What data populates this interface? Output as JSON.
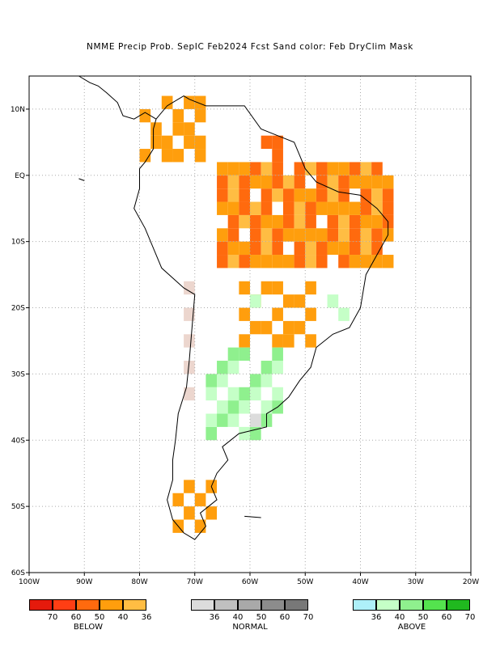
{
  "title": "NMME Precip Prob. SepIC  Feb2024 Fcst  Sand color: Feb DryClim Mask",
  "map": {
    "lon_range": [
      -100,
      -20
    ],
    "lat_range": [
      -60,
      15
    ],
    "lon_ticks": [
      "100W",
      "90W",
      "80W",
      "70W",
      "60W",
      "50W",
      "40W",
      "30W",
      "20W"
    ],
    "lat_ticks": [
      "10N",
      "EQ",
      "10S",
      "20S",
      "30S",
      "40S",
      "50S",
      "60S"
    ],
    "gridlines": "dotted"
  },
  "colors": {
    "below": [
      "#e51a0c",
      "#ff3e14",
      "#ff6a0e",
      "#ff9e0d",
      "#ffbd43"
    ],
    "normal": [
      "#dcdcdc",
      "#c0c0c0",
      "#a9a9a9",
      "#8c8c8c",
      "#787878"
    ],
    "above": [
      "#aef0f9",
      "#c5ffc7",
      "#8ff08e",
      "#54e34e",
      "#20b91f"
    ],
    "dryclim": "#ecd6ce"
  },
  "legend": {
    "below": {
      "title": "BELOW",
      "labels": [
        "70",
        "60",
        "50",
        "40",
        "36"
      ]
    },
    "normal": {
      "title": "NORMAL",
      "labels": [
        "36",
        "40",
        "50",
        "60",
        "70"
      ]
    },
    "above": {
      "title": "ABOVE",
      "labels": [
        "36",
        "40",
        "50",
        "60",
        "70"
      ]
    }
  }
}
